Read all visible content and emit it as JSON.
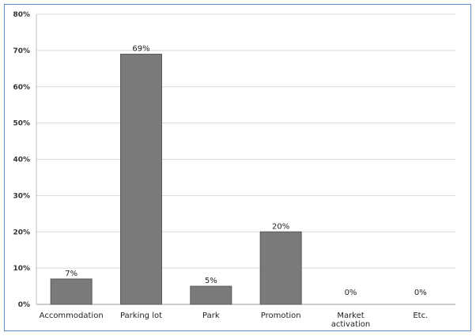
{
  "chart_data": {
    "type": "bar",
    "categories": [
      "Accommodation",
      "Parking lot",
      "Park",
      "Promotion",
      "Market activation",
      "Etc."
    ],
    "category_lines": [
      [
        "Accommodation"
      ],
      [
        "Parking lot"
      ],
      [
        "Park"
      ],
      [
        "Promotion"
      ],
      [
        "Market",
        "activation"
      ],
      [
        "Etc."
      ]
    ],
    "values": [
      7,
      69,
      5,
      20,
      0,
      0
    ],
    "data_labels": [
      "7%",
      "69%",
      "5%",
      "20%",
      "0%",
      "0%"
    ],
    "ylim": [
      0,
      80
    ],
    "yticks": [
      0,
      10,
      20,
      30,
      40,
      50,
      60,
      70,
      80
    ],
    "ytick_labels": [
      "0%",
      "10%",
      "20%",
      "30%",
      "40%",
      "50%",
      "60%",
      "70%",
      "80%"
    ],
    "title": "",
    "xlabel": "",
    "ylabel": "",
    "grid": true,
    "bar_color": "#7a7a7a",
    "bar_border_color": "#5a5a5a",
    "grid_color": "#d9d9d9",
    "frame_color": "#5b8fc9"
  }
}
